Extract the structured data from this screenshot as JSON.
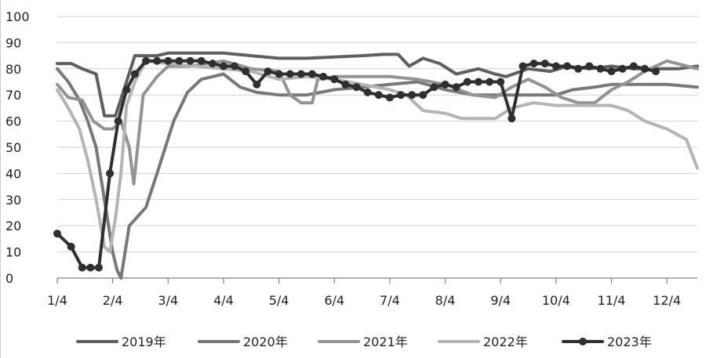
{
  "chart_data": {
    "type": "line",
    "title": "",
    "xlabel": "",
    "ylabel": "",
    "ylim": [
      0,
      100
    ],
    "yticks": [
      0,
      10,
      20,
      30,
      40,
      50,
      60,
      70,
      80,
      90,
      100
    ],
    "xlim": [
      0,
      11.55
    ],
    "xticks": [
      {
        "label": "1/4",
        "x": 0
      },
      {
        "label": "2/4",
        "x": 1
      },
      {
        "label": "3/4",
        "x": 2
      },
      {
        "label": "4/4",
        "x": 3
      },
      {
        "label": "5/4",
        "x": 4
      },
      {
        "label": "6/4",
        "x": 5
      },
      {
        "label": "7/4",
        "x": 6
      },
      {
        "label": "8/4",
        "x": 7
      },
      {
        "label": "9/4",
        "x": 8
      },
      {
        "label": "10/4",
        "x": 9
      },
      {
        "label": "11/4",
        "x": 10
      },
      {
        "label": "12/4",
        "x": 11
      }
    ],
    "grid": true,
    "legend_position": "bottom",
    "series": [
      {
        "name": "2019年",
        "color": "#5f5f5f",
        "width": 4,
        "markers": false,
        "x": [
          0,
          0.25,
          0.45,
          0.7,
          0.85,
          1.05,
          1.25,
          1.4,
          1.55,
          1.8,
          2.0,
          2.5,
          3.0,
          3.5,
          4.0,
          4.5,
          5.0,
          5.5,
          5.9,
          6.15,
          6.35,
          6.6,
          6.9,
          7.2,
          7.6,
          7.9,
          8.1,
          8.5,
          8.9,
          9.2,
          9.6,
          10.0,
          10.4,
          10.8,
          11.2,
          11.55
        ],
        "y": [
          82,
          82,
          80,
          78,
          62,
          62,
          75,
          85,
          85,
          85,
          86,
          86,
          86,
          85,
          84,
          84,
          84.5,
          85,
          85.5,
          85.5,
          81,
          84,
          82,
          78,
          80,
          78,
          77,
          80,
          79,
          81,
          80,
          81,
          80,
          80,
          80,
          81
        ]
      },
      {
        "name": "2020年",
        "color": "#787878",
        "width": 4,
        "markers": false,
        "x": [
          0,
          0.2,
          0.4,
          0.55,
          0.7,
          0.85,
          1.0,
          1.08,
          1.15,
          1.3,
          1.6,
          1.8,
          2.1,
          2.35,
          2.6,
          3.0,
          3.3,
          3.6,
          4.0,
          4.5,
          5.0,
          5.5,
          6.0,
          6.5,
          7.0,
          7.5,
          8.0,
          8.5,
          9.0,
          9.3,
          9.7,
          10.0,
          10.5,
          11.0,
          11.55
        ],
        "y": [
          80,
          75,
          68,
          60,
          50,
          30,
          10,
          3,
          0,
          20,
          27,
          40,
          60,
          71,
          76,
          78,
          73,
          71,
          70,
          70,
          72,
          73,
          74,
          75,
          72,
          70,
          70,
          70,
          70,
          72,
          73,
          74,
          74,
          74,
          73
        ]
      },
      {
        "name": "2021年",
        "color": "#939393",
        "width": 4,
        "markers": false,
        "x": [
          0,
          0.2,
          0.45,
          0.65,
          0.85,
          1.0,
          1.15,
          1.3,
          1.38,
          1.55,
          1.8,
          2.0,
          2.4,
          3.0,
          3.5,
          4.0,
          4.2,
          4.4,
          4.6,
          4.7,
          5.0,
          5.5,
          6.0,
          6.5,
          7.0,
          7.5,
          7.9,
          8.2,
          8.5,
          8.8,
          9.1,
          9.4,
          9.7,
          10.0,
          10.3,
          10.6,
          11.0,
          11.55
        ],
        "y": [
          74,
          69,
          68,
          60,
          57,
          57,
          60,
          50,
          36,
          70,
          77,
          81,
          81,
          83,
          80,
          79,
          70,
          67,
          67,
          76,
          77,
          77,
          77,
          76,
          74,
          70,
          69,
          73,
          76,
          73,
          69,
          67,
          67,
          72,
          75,
          79,
          83,
          80
        ]
      },
      {
        "name": "2022年",
        "color": "#b4b4b4",
        "width": 4,
        "markers": false,
        "x": [
          0,
          0.2,
          0.4,
          0.55,
          0.7,
          0.85,
          0.95,
          1.05,
          1.15,
          1.25,
          1.4,
          1.6,
          2.0,
          2.5,
          3.0,
          3.5,
          4.0,
          4.5,
          5.0,
          5.5,
          6.0,
          6.3,
          6.6,
          7.0,
          7.3,
          7.6,
          7.9,
          8.2,
          8.6,
          9.0,
          9.3,
          9.6,
          10.0,
          10.3,
          10.6,
          11.0,
          11.35,
          11.55
        ],
        "y": [
          72,
          65,
          57,
          45,
          30,
          12,
          10,
          23,
          40,
          66,
          75,
          83,
          82,
          81,
          80,
          79,
          76,
          77,
          76,
          74,
          72,
          70,
          64,
          63,
          61,
          61,
          61,
          65,
          67,
          66,
          66,
          66,
          66,
          64,
          60,
          57,
          53,
          42
        ]
      },
      {
        "name": "2023年",
        "color": "#2f2f2f",
        "width": 4,
        "markers": true,
        "x": [
          0,
          0.25,
          0.45,
          0.6,
          0.75,
          0.95,
          1.1,
          1.25,
          1.4,
          1.6,
          1.8,
          2.0,
          2.2,
          2.4,
          2.6,
          2.8,
          3.0,
          3.2,
          3.4,
          3.6,
          3.8,
          4.0,
          4.2,
          4.4,
          4.6,
          4.8,
          5.0,
          5.2,
          5.4,
          5.6,
          5.8,
          6.0,
          6.2,
          6.4,
          6.6,
          6.8,
          7.0,
          7.2,
          7.4,
          7.6,
          7.8,
          8.0,
          8.2,
          8.4,
          8.6,
          8.8,
          9.0,
          9.2,
          9.4,
          9.6,
          9.8,
          10.0,
          10.2,
          10.4,
          10.6,
          10.8
        ],
        "y": [
          17,
          12,
          4,
          4,
          4,
          40,
          60,
          72,
          78,
          83,
          83,
          83,
          83,
          83,
          83,
          82,
          81,
          81,
          79,
          74,
          79,
          78,
          78,
          78,
          78,
          77,
          76,
          74,
          73,
          71,
          70,
          69,
          70,
          70,
          70,
          73,
          74,
          73,
          75,
          75,
          75,
          75,
          61,
          81,
          82,
          82,
          81,
          81,
          80,
          81,
          80,
          79,
          80,
          81,
          80,
          79
        ]
      }
    ]
  }
}
